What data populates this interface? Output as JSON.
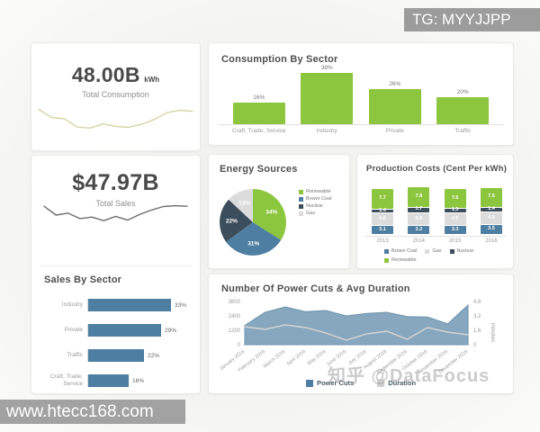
{
  "overlays": {
    "tg_badge": "TG: MYYJJPP",
    "url_badge": "www.htecc168.com",
    "watermark": "知乎 @DataFocus"
  },
  "kpi_consumption": {
    "value": "48.00B",
    "unit": "kWh",
    "label": "Total Consumption"
  },
  "kpi_sales": {
    "value": "$47.97B",
    "label": "Total Sales"
  },
  "colors": {
    "green": "#8cc63e",
    "steel_blue": "#4e7ea1",
    "area_blue": "#7d9fb8",
    "dark_navy": "#3c4d5c",
    "light_gray": "#dcdcdc",
    "spark_khaki": "#d8d3a4",
    "spark_dark": "#6e6e6e"
  },
  "chart_data": [
    {
      "id": "consumption_by_sector",
      "type": "bar",
      "title": "Consumption By Sector",
      "categories": [
        "Craft, Trade, Service",
        "Industry",
        "Private",
        "Traffic"
      ],
      "values": [
        16,
        38,
        26,
        20
      ],
      "unit": "%",
      "ylim": [
        0,
        40
      ],
      "color": "#8cc63e",
      "grid": false
    },
    {
      "id": "consumption_spark",
      "type": "line",
      "title": "Total Consumption trend sparkline (no axes shown)",
      "values": [
        70,
        46,
        42,
        18,
        15,
        27,
        20,
        17,
        26,
        40,
        60,
        67,
        64
      ],
      "color": "#d8d3a4"
    },
    {
      "id": "sales_spark",
      "type": "line",
      "title": "Total Sales trend sparkline (no axes shown)",
      "values": [
        85,
        50,
        58,
        36,
        42,
        28,
        45,
        30,
        52,
        70,
        84,
        87,
        85
      ],
      "color": "#6e6e6e"
    },
    {
      "id": "sales_by_sector",
      "type": "bar",
      "orientation": "horizontal",
      "title": "Sales By Sector",
      "categories": [
        "Industry",
        "Private",
        "Traffic",
        "Craft, Trade, Service"
      ],
      "values": [
        33,
        29,
        22,
        16
      ],
      "unit": "%",
      "color": "#4e7ea1",
      "grid": false
    },
    {
      "id": "energy_sources",
      "type": "pie",
      "title": "Energy Sources",
      "labels": [
        "Renewable",
        "Brown Coal",
        "Nuclear",
        "Gas"
      ],
      "values": [
        34,
        31,
        22,
        13
      ],
      "unit": "%",
      "colors": [
        "#8cc63e",
        "#4e7ea1",
        "#3c4d5c",
        "#dcdcdc"
      ],
      "legend_position": "right"
    },
    {
      "id": "production_costs",
      "type": "bar",
      "stacked": true,
      "title": "Production Costs (Cent Per kWh)",
      "categories": [
        "2013",
        "2014",
        "2015",
        "2016"
      ],
      "series": [
        {
          "name": "Brown Coal",
          "color": "#4e7ea1",
          "values": [
            3.1,
            3.2,
            3.3,
            3.5
          ]
        },
        {
          "name": "Gas",
          "color": "#dcdcdc",
          "values": [
            4.6,
            4.8,
            4.5,
            4.9
          ]
        },
        {
          "name": "Nuclear",
          "color": "#3c4d5c",
          "values": [
            1.4,
            1.7,
            1.5,
            1.4
          ]
        },
        {
          "name": "Renewable",
          "color": "#8cc63e",
          "values": [
            7.7,
            7.8,
            7.6,
            7.5
          ]
        }
      ],
      "legend_order": [
        "Brown Coal",
        "Gas",
        "Nuclear",
        "Renewable"
      ],
      "legend_position": "bottom"
    },
    {
      "id": "power_cuts",
      "type": "area",
      "title": "Number Of Power Cuts & Avg Duration",
      "x": [
        "January 2016",
        "February 2016",
        "March 2016",
        "April 2016",
        "May 2016",
        "June 2016",
        "July 2016",
        "August 2016",
        "September 2016",
        "October 2016",
        "November 2016",
        "December 2016"
      ],
      "series": [
        {
          "name": "Power Cuts",
          "type": "area",
          "axis": "left",
          "color": "#7d9fb8",
          "legend_color": "#4e7ea1",
          "values": [
            1600,
            2700,
            3150,
            2750,
            2850,
            2400,
            2600,
            2700,
            2350,
            2300,
            1750,
            3300
          ]
        },
        {
          "name": "Duration",
          "type": "line",
          "axis": "right",
          "color": "#d6d6d4",
          "legend_color": "#cfcfcf",
          "values": [
            2.0,
            1.7,
            2.2,
            1.9,
            1.3,
            0.5,
            1.2,
            1.5,
            0.6,
            1.9,
            1.4,
            1.1
          ]
        }
      ],
      "left_axis": {
        "ticks": [
          0,
          1200,
          2400,
          3600
        ],
        "max": 3600
      },
      "right_axis": {
        "ticks": [
          0,
          1.6,
          3.2,
          4.8
        ],
        "max": 4.8,
        "label": "minutes"
      },
      "legend": [
        "Power Cuts",
        "Duration"
      ],
      "legend_position": "bottom",
      "grid": false
    }
  ]
}
